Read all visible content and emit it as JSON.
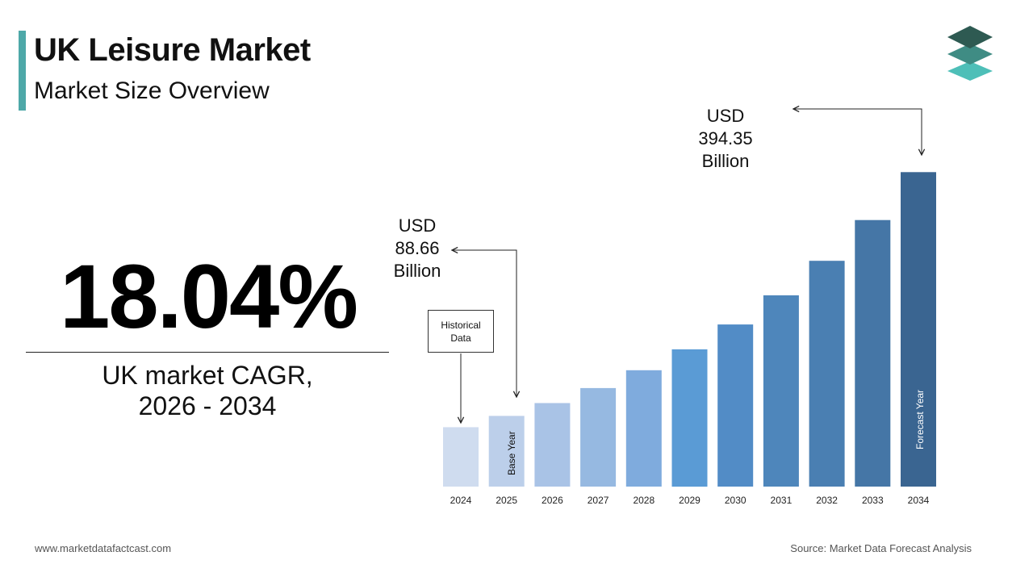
{
  "header": {
    "title": "UK Leisure Market",
    "subtitle": "Market Size Overview"
  },
  "kpi": {
    "cagr_value": "18.04%",
    "label_line1": "UK market CAGR,",
    "label_line2": "2026 - 2034"
  },
  "callouts": {
    "base": {
      "line1": "USD",
      "line2": "88.66",
      "line3": "Billion"
    },
    "forecast": {
      "line1": "USD",
      "line2": "394.35",
      "line3": "Billion"
    },
    "historical_label_line1": "Historical",
    "historical_label_line2": "Data",
    "base_year_label": "Base Year",
    "forecast_year_label": "Forecast Year"
  },
  "footer": {
    "website": "www.marketdatafactcast.com",
    "source": "Source: Market Data Forecast Analysis"
  },
  "colors": {
    "accent": "#4ea8a8",
    "bars": [
      "#cfdcef",
      "#bccfea",
      "#a9c3e6",
      "#96b9e1",
      "#7fabdd",
      "#5a9bd5",
      "#528cc6",
      "#4e86bb",
      "#4a7fb2",
      "#4576a6",
      "#3a6591"
    ]
  },
  "chart_data": {
    "type": "bar",
    "categories": [
      "2024",
      "2025",
      "2026",
      "2027",
      "2028",
      "2029",
      "2030",
      "2031",
      "2032",
      "2033",
      "2034"
    ],
    "values": [
      74.5,
      88.66,
      104.7,
      123.6,
      145.9,
      172.2,
      203.3,
      239.9,
      283.2,
      334.3,
      394.35
    ],
    "unit": "USD Billion",
    "ylim": [
      0,
      420
    ],
    "grid": false,
    "legend": "none"
  }
}
